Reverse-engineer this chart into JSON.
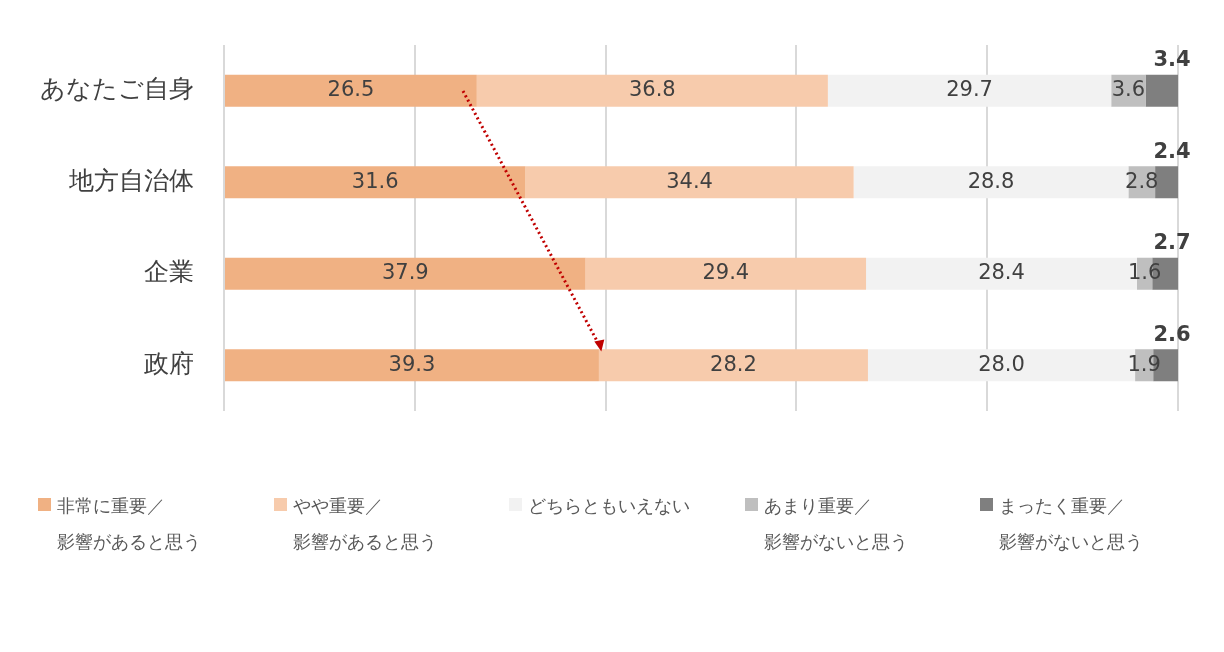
{
  "chart_data": {
    "type": "bar",
    "orientation": "horizontal",
    "stacked": true,
    "categories": [
      "あなたご自身",
      "地方自治体",
      "企業",
      "政府"
    ],
    "series": [
      {
        "name": "非常に重要／影響があると思う",
        "color": "#f0b183",
        "values": [
          26.5,
          31.6,
          37.9,
          39.3
        ],
        "value_labels": [
          "26.5",
          "31.6",
          "37.9",
          "39.3"
        ]
      },
      {
        "name": "やや重要／影響があると思う",
        "color": "#f7cbac",
        "values": [
          36.8,
          34.4,
          29.4,
          28.2
        ],
        "value_labels": [
          "36.8",
          "34.4",
          "29.4",
          "28.2"
        ]
      },
      {
        "name": "どちらともいえない",
        "color": "#f2f2f2",
        "values": [
          29.7,
          28.8,
          28.4,
          28.0
        ],
        "value_labels": [
          "29.7",
          "28.8",
          "28.4",
          "28.0"
        ]
      },
      {
        "name": "あまり重要／影響がないと思う",
        "color": "#bfbfbf",
        "values": [
          3.6,
          2.8,
          1.6,
          1.9
        ],
        "value_labels": [
          "3.6",
          "2.8",
          "1.6",
          "1.9"
        ]
      },
      {
        "name": "まったく重要／影響がないと思う",
        "color": "#7f7f7f",
        "values": [
          3.4,
          2.4,
          2.7,
          2.6
        ],
        "value_labels": [
          "3.4",
          "2.4",
          "2.7",
          "2.6"
        ]
      }
    ],
    "xlim": [
      0,
      100
    ],
    "xticks": [
      {
        "value": 0,
        "label": null
      },
      {
        "value": 20,
        "label": null
      },
      {
        "value": 40,
        "label": null
      },
      {
        "value": 60,
        "label": null
      },
      {
        "value": 80,
        "label": null
      },
      {
        "value": 100,
        "label": null
      }
    ],
    "tick_labels": "y",
    "grid": "x",
    "legend": "bottom"
  }
}
